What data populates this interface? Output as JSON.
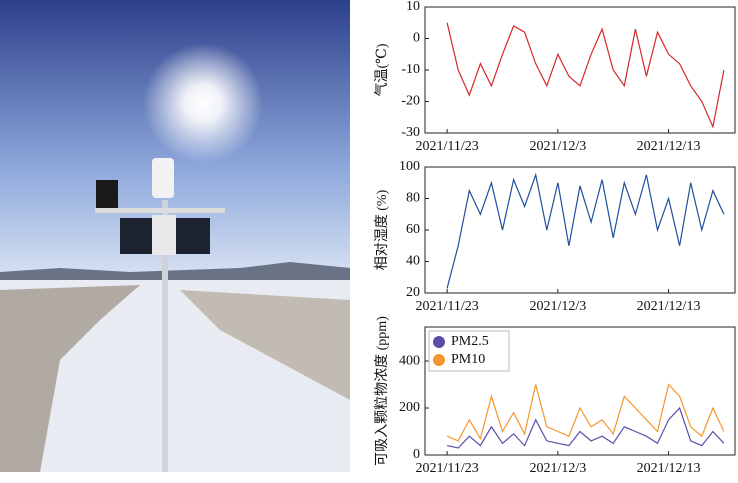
{
  "chart_data": [
    {
      "type": "line",
      "ylabel": "气温(℃)",
      "x": [
        "2021/11/23",
        "2021/11/24",
        "2021/11/25",
        "2021/11/26",
        "2021/11/27",
        "2021/11/28",
        "2021/11/29",
        "2021/11/30",
        "2021/12/1",
        "2021/12/2",
        "2021/12/3",
        "2021/12/4",
        "2021/12/5",
        "2021/12/6",
        "2021/12/7",
        "2021/12/8",
        "2021/12/9",
        "2021/12/10",
        "2021/12/11",
        "2021/12/12",
        "2021/12/13",
        "2021/12/14",
        "2021/12/15",
        "2021/12/16",
        "2021/12/17",
        "2021/12/18"
      ],
      "series": [
        {
          "color": "#d62728",
          "values": [
            5,
            -10,
            -18,
            -8,
            -15,
            -5,
            4,
            2,
            -8,
            -15,
            -5,
            -12,
            -15,
            -5,
            3,
            -10,
            -15,
            3,
            -12,
            2,
            -5,
            -8,
            -15,
            -20,
            -28,
            -10
          ]
        }
      ],
      "xlim": [
        "2021/11/21",
        "2021/12/19"
      ],
      "xticks": [
        "2021/11/23",
        "2021/12/3",
        "2021/12/13"
      ],
      "ylim": [
        -30,
        10
      ],
      "yticks": [
        -30,
        -20,
        -10,
        0,
        10
      ]
    },
    {
      "type": "line",
      "ylabel": "相对湿度 (%)",
      "x": [
        "2021/11/23",
        "2021/11/24",
        "2021/11/25",
        "2021/11/26",
        "2021/11/27",
        "2021/11/28",
        "2021/11/29",
        "2021/11/30",
        "2021/12/1",
        "2021/12/2",
        "2021/12/3",
        "2021/12/4",
        "2021/12/5",
        "2021/12/6",
        "2021/12/7",
        "2021/12/8",
        "2021/12/9",
        "2021/12/10",
        "2021/12/11",
        "2021/12/12",
        "2021/12/13",
        "2021/12/14",
        "2021/12/15",
        "2021/12/16",
        "2021/12/17",
        "2021/12/18"
      ],
      "series": [
        {
          "color": "#1f4e9c",
          "values": [
            23,
            50,
            85,
            70,
            90,
            60,
            92,
            75,
            95,
            60,
            90,
            50,
            88,
            65,
            92,
            55,
            90,
            70,
            95,
            60,
            80,
            50,
            90,
            60,
            85,
            70
          ]
        }
      ],
      "xlim": [
        "2021/11/21",
        "2021/12/19"
      ],
      "xticks": [
        "2021/11/23",
        "2021/12/3",
        "2021/12/13"
      ],
      "ylim": [
        20,
        100
      ],
      "yticks": [
        20,
        40,
        60,
        80,
        100
      ]
    },
    {
      "type": "line",
      "ylabel": "可吸入颗粒物浓度 (ppm)",
      "legend": "upper left",
      "x": [
        "2021/11/23",
        "2021/11/24",
        "2021/11/25",
        "2021/11/26",
        "2021/11/27",
        "2021/11/28",
        "2021/11/29",
        "2021/11/30",
        "2021/12/1",
        "2021/12/2",
        "2021/12/3",
        "2021/12/4",
        "2021/12/5",
        "2021/12/6",
        "2021/12/7",
        "2021/12/8",
        "2021/12/9",
        "2021/12/10",
        "2021/12/11",
        "2021/12/12",
        "2021/12/13",
        "2021/12/14",
        "2021/12/15",
        "2021/12/16",
        "2021/12/17",
        "2021/12/18"
      ],
      "series": [
        {
          "name": "PM10",
          "color": "#f5962a",
          "values": [
            80,
            60,
            150,
            70,
            250,
            100,
            180,
            90,
            300,
            120,
            100,
            80,
            200,
            120,
            150,
            90,
            250,
            200,
            150,
            100,
            300,
            250,
            120,
            80,
            200,
            100
          ]
        },
        {
          "name": "PM2.5",
          "color": "#5b4ea8",
          "values": [
            40,
            30,
            80,
            40,
            120,
            50,
            90,
            40,
            150,
            60,
            50,
            40,
            100,
            60,
            80,
            50,
            120,
            100,
            80,
            50,
            150,
            200,
            60,
            40,
            100,
            50
          ]
        }
      ],
      "xlim": [
        "2021/11/21",
        "2021/12/19"
      ],
      "xticks": [
        "2021/11/23",
        "2021/12/3",
        "2021/12/13"
      ],
      "ylim": [
        0,
        545
      ],
      "yticks": [
        0,
        200,
        400
      ]
    }
  ]
}
